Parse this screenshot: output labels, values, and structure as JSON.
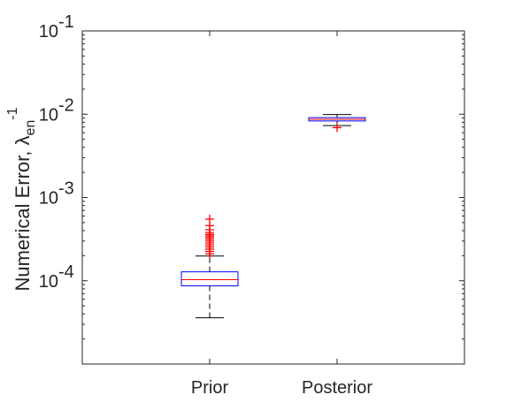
{
  "chart_data": {
    "type": "box",
    "ylabel": {
      "main": "Numerical Error, ",
      "greek": "λ",
      "subscript": "en",
      "superscript": "-1"
    },
    "yscale": "log",
    "ylim": [
      1e-05,
      0.1
    ],
    "yticks": [
      {
        "value": 0.1,
        "base": "10",
        "exp": "-1"
      },
      {
        "value": 0.01,
        "base": "10",
        "exp": "-2"
      },
      {
        "value": 0.001,
        "base": "10",
        "exp": "-3"
      },
      {
        "value": 0.0001,
        "base": "10",
        "exp": "-4"
      }
    ],
    "categories": [
      "Prior",
      "Posterior"
    ],
    "boxes": [
      {
        "name": "Prior",
        "whisker_low": 3.6e-05,
        "q1": 8.7e-05,
        "median": 0.000103,
        "q3": 0.000128,
        "whisker_high": 0.000198,
        "outliers": [
          0.00021,
          0.000225,
          0.00024,
          0.000255,
          0.00027,
          0.000285,
          0.0003,
          0.000315,
          0.00033,
          0.000345,
          0.00036,
          0.00038,
          0.00041,
          0.00046,
          0.00055
        ]
      },
      {
        "name": "Posterior",
        "whisker_low": 0.0073,
        "q1": 0.0083,
        "median": 0.0087,
        "q3": 0.0091,
        "whisker_high": 0.0099,
        "outliers": [
          0.0069
        ]
      }
    ],
    "colors": {
      "box": "#0000ff",
      "median": "#ff0000",
      "whisker": "#000000",
      "outlier": "#ff0000",
      "axes": "#262626"
    },
    "grid": false,
    "legend": "none"
  }
}
